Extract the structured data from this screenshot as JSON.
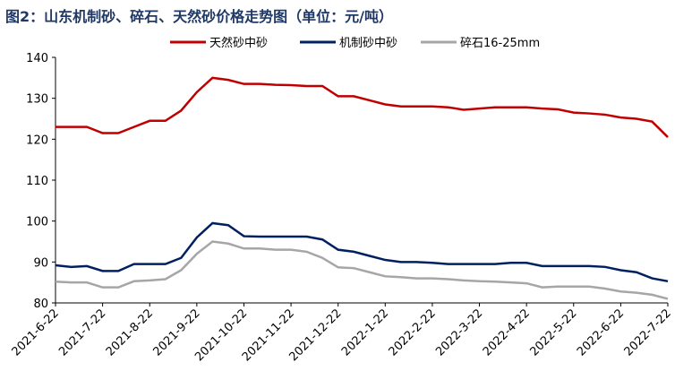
{
  "chart_data": {
    "type": "line",
    "title": "图2：山东机制砂、碎石、天然砂价格走势图（单位：元/吨）",
    "categories": [
      "2021-6-22",
      null,
      null,
      "2021-7-22",
      null,
      null,
      "2021-8-22",
      null,
      null,
      "2021-9-22",
      null,
      null,
      "2021-10-22",
      null,
      null,
      "2021-11-22",
      null,
      null,
      "2021-12-22",
      null,
      null,
      "2022-1-22",
      null,
      null,
      "2022-2-22",
      null,
      null,
      "2022-3-22",
      null,
      null,
      "2022-4-22",
      null,
      null,
      "2022-5-22",
      null,
      null,
      "2022-6-22",
      null,
      null,
      "2022-7-22"
    ],
    "series": [
      {
        "name": "天然砂中砂",
        "color": "#c00000",
        "values": [
          123,
          123,
          123,
          121.5,
          121.5,
          123,
          124.5,
          124.5,
          127,
          131.5,
          135,
          134.5,
          133.5,
          133.5,
          133.3,
          133.2,
          133,
          133,
          130.5,
          130.5,
          129.5,
          128.5,
          128,
          128,
          128,
          127.8,
          127.2,
          127.5,
          127.8,
          127.8,
          127.8,
          127.5,
          127.3,
          126.5,
          126.3,
          126,
          125.3,
          125,
          124.3,
          120.5
        ]
      },
      {
        "name": "机制砂中砂",
        "color": "#002060",
        "values": [
          89.2,
          88.8,
          89,
          87.8,
          87.8,
          89.5,
          89.5,
          89.5,
          91,
          96,
          99.5,
          99,
          96.3,
          96.2,
          96.2,
          96.2,
          96.2,
          95.5,
          93,
          92.5,
          91.5,
          90.5,
          90,
          90,
          89.8,
          89.5,
          89.5,
          89.5,
          89.5,
          89.8,
          89.8,
          89,
          89,
          89,
          89,
          88.8,
          88,
          87.5,
          86,
          85.3
        ]
      },
      {
        "name": "碎石16-25mm",
        "color": "#a6a6a6",
        "values": [
          85.2,
          85,
          85,
          83.8,
          83.8,
          85.3,
          85.5,
          85.8,
          88,
          92,
          95,
          94.5,
          93.3,
          93.3,
          93,
          93,
          92.5,
          91,
          88.7,
          88.5,
          87.5,
          86.5,
          86.3,
          86,
          86,
          85.8,
          85.5,
          85.3,
          85.2,
          85,
          84.8,
          83.8,
          84,
          84,
          84,
          83.5,
          82.8,
          82.5,
          82,
          81
        ]
      }
    ],
    "ylim": [
      80,
      140
    ],
    "yticks": [
      80,
      90,
      100,
      110,
      120,
      130,
      140
    ],
    "grid": false,
    "legend": "top"
  }
}
